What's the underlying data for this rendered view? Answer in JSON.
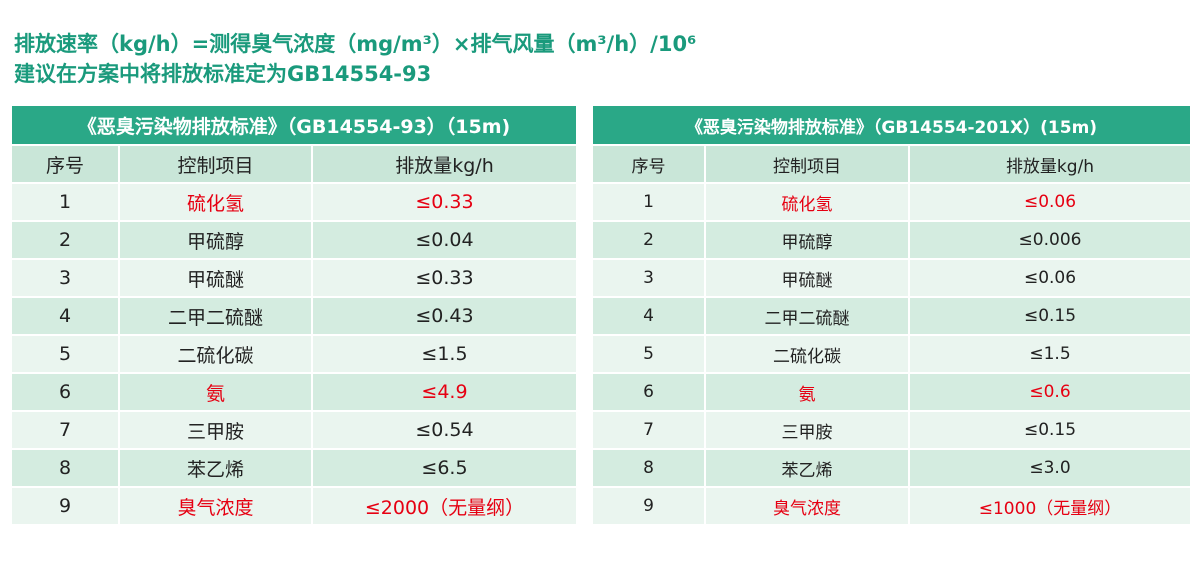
{
  "header": {
    "formula": "排放速率（kg/h）=测得臭气浓度（mg/m³）×排气风量（m³/h）/10⁶",
    "suggestion": "建议在方案中将排放标准定为GB14554-93"
  },
  "left_table": {
    "title": "《恶臭污染物排放标准》（GB14554-93）（15m)",
    "header": [
      "序号",
      "控制项目",
      "排放量kg/h"
    ],
    "rows": [
      {
        "cells": [
          "1",
          "硫化氢",
          "≤0.33"
        ],
        "color": "#e60012"
      },
      {
        "cells": [
          "2",
          "甲硫醇",
          "≤0.04"
        ],
        "color": "#222222"
      },
      {
        "cells": [
          "3",
          "甲硫醚",
          "≤0.33"
        ],
        "color": "#222222"
      },
      {
        "cells": [
          "4",
          "二甲二硫醚",
          "≤0.43"
        ],
        "color": "#222222"
      },
      {
        "cells": [
          "5",
          "二硫化碳",
          "≤1.5"
        ],
        "color": "#222222"
      },
      {
        "cells": [
          "6",
          "氨",
          "≤4.9"
        ],
        "color": "#e60012"
      },
      {
        "cells": [
          "7",
          "三甲胺",
          "≤0.54"
        ],
        "color": "#222222"
      },
      {
        "cells": [
          "8",
          "苯乙烯",
          "≤6.5"
        ],
        "color": "#222222"
      },
      {
        "cells": [
          "9",
          "臭气浓度",
          "≤2000（无量纲）"
        ],
        "color": "#e60012"
      }
    ]
  },
  "right_table": {
    "title": "《恶臭污染物排放标准》（GB14554-201X）(15m)",
    "header": [
      "序号",
      "控制项目",
      "排放量kg/h"
    ],
    "rows": [
      {
        "cells": [
          "1",
          "硫化氢",
          "≤0.06"
        ],
        "color": "#e60012"
      },
      {
        "cells": [
          "2",
          "甲硫醇",
          "≤0.006"
        ],
        "color": "#222222"
      },
      {
        "cells": [
          "3",
          "甲硫醚",
          "≤0.06"
        ],
        "color": "#222222"
      },
      {
        "cells": [
          "4",
          "二甲二硫醚",
          "≤0.15"
        ],
        "color": "#222222"
      },
      {
        "cells": [
          "5",
          "二硫化碳",
          "≤1.5"
        ],
        "color": "#222222"
      },
      {
        "cells": [
          "6",
          "氨",
          "≤0.6"
        ],
        "color": "#e60012"
      },
      {
        "cells": [
          "7",
          "三甲胺",
          "≤0.15"
        ],
        "color": "#222222"
      },
      {
        "cells": [
          "8",
          "苯乙烯",
          "≤3.0"
        ],
        "color": "#222222"
      },
      {
        "cells": [
          "9",
          "臭气浓度",
          "≤1000（无量纲）"
        ],
        "color": "#e60012"
      }
    ]
  }
}
